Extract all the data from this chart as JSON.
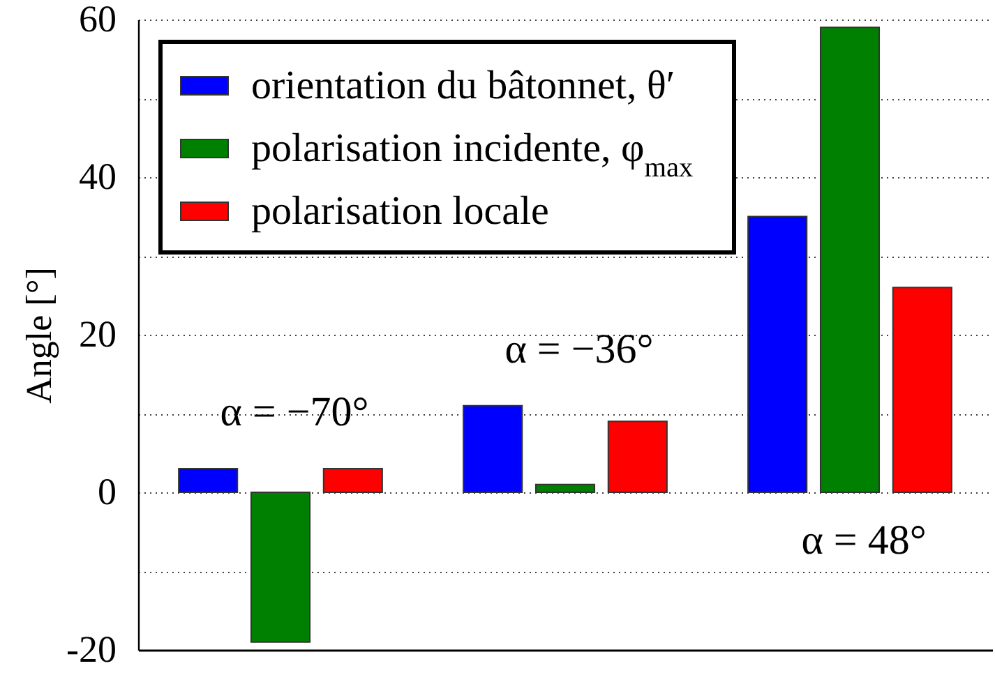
{
  "chart_data": {
    "type": "bar",
    "ylabel": "Angle [°]",
    "categories": [
      null,
      null,
      null
    ],
    "series": [
      {
        "name": "orientation du bâtonnet, θ′",
        "color": "#0000ff",
        "values": [
          3,
          11,
          35
        ]
      },
      {
        "name": "polarisation incidente, φ$_{max}$",
        "color": "#008000",
        "values": [
          -19,
          1,
          59
        ]
      },
      {
        "name": "polarisation locale",
        "color": "#ff0000",
        "values": [
          3,
          9,
          26
        ]
      }
    ],
    "ylim": [
      -20,
      60
    ],
    "yticks": [
      -20,
      {
        "value": -10,
        "label": null
      },
      0,
      {
        "value": 10,
        "label": null
      },
      20,
      {
        "value": 30,
        "label": null
      },
      40,
      {
        "value": 50,
        "label": null
      },
      60
    ],
    "grid": "y",
    "legend": "top left",
    "tick_labels": "y",
    "annotations": [
      "α = −70°",
      "α = −36°",
      "α = 48°"
    ]
  }
}
